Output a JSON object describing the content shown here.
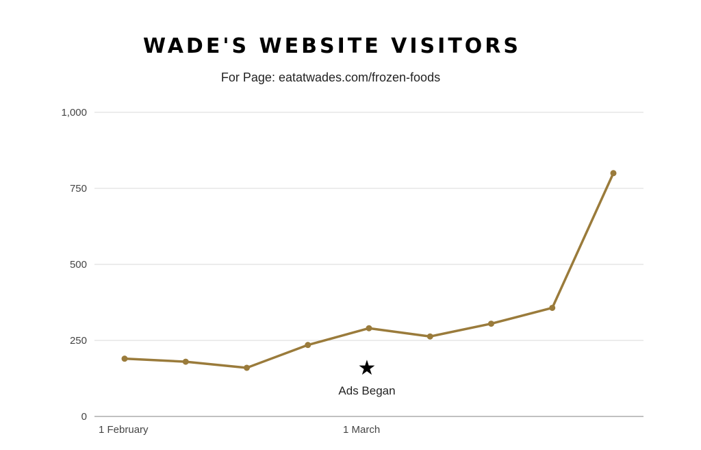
{
  "chart_data": {
    "type": "line",
    "title": "WADE'S WEBSITE VISITORS",
    "subtitle": "For Page: eatatwades.com/frozen-foods",
    "xlabel": "",
    "ylabel": "",
    "ylim": [
      0,
      1000
    ],
    "yticks": [
      0,
      250,
      500,
      750,
      1000
    ],
    "ytick_labels": [
      "0",
      "250",
      "500",
      "750",
      "1,000"
    ],
    "xticks": [
      {
        "label": "1 February",
        "index": 0
      },
      {
        "label": "1 March",
        "index": 4
      }
    ],
    "grid": true,
    "legend": "none",
    "color": "#9a7b3b",
    "series": [
      {
        "values": [
          190,
          180,
          160,
          235,
          290,
          263,
          305,
          357,
          800
        ]
      }
    ],
    "annotations": [
      {
        "text": "Ads Began",
        "marker": "star",
        "x_index": 4,
        "y": 160
      }
    ]
  }
}
